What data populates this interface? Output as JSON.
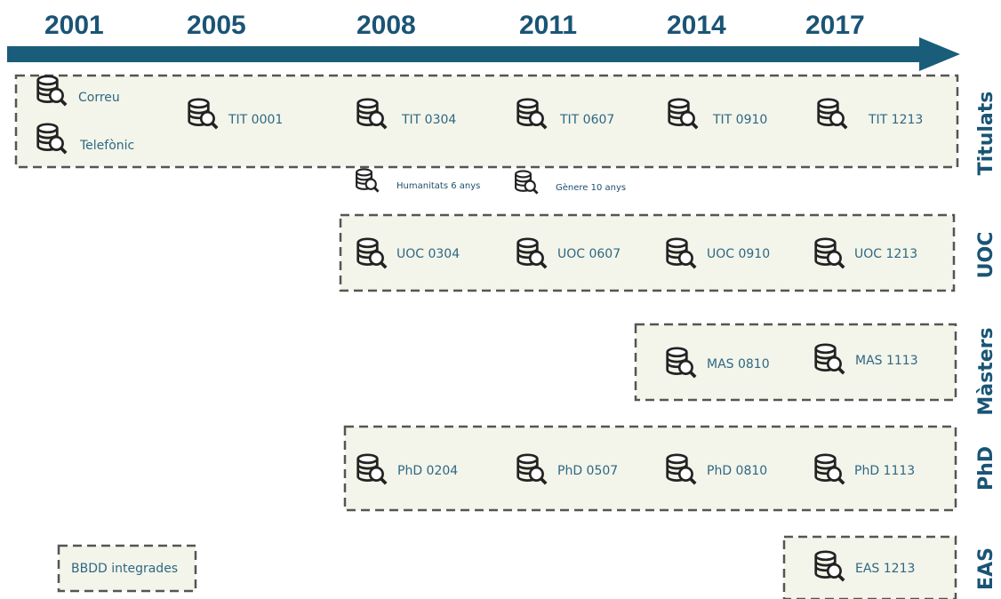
{
  "years": [
    "2001",
    "2005",
    "2008",
    "2011",
    "2014",
    "2017"
  ],
  "rows": [
    {
      "label": "Titulats",
      "items": [
        "Correu",
        "Telefònic",
        "TIT 0001",
        "TIT 0304",
        "TIT 0607",
        "TIT 0910",
        "TIT 1213"
      ]
    },
    {
      "label": "UOC",
      "items": [
        "UOC 0304",
        "UOC 0607",
        "UOC 0910",
        "UOC 1213"
      ]
    },
    {
      "label": "Màsters",
      "items": [
        "MAS 0810",
        "MAS 1113"
      ]
    },
    {
      "label": "PhD",
      "items": [
        "PhD 0204",
        "PhD 0507",
        "PhD 0810",
        "PhD 1113"
      ]
    },
    {
      "label": "EAS",
      "items": [
        "EAS 1213"
      ]
    }
  ],
  "notes": [
    "Humanitats 6 anys",
    "Gènere 10 anys"
  ],
  "legend": "BBDD integrades"
}
